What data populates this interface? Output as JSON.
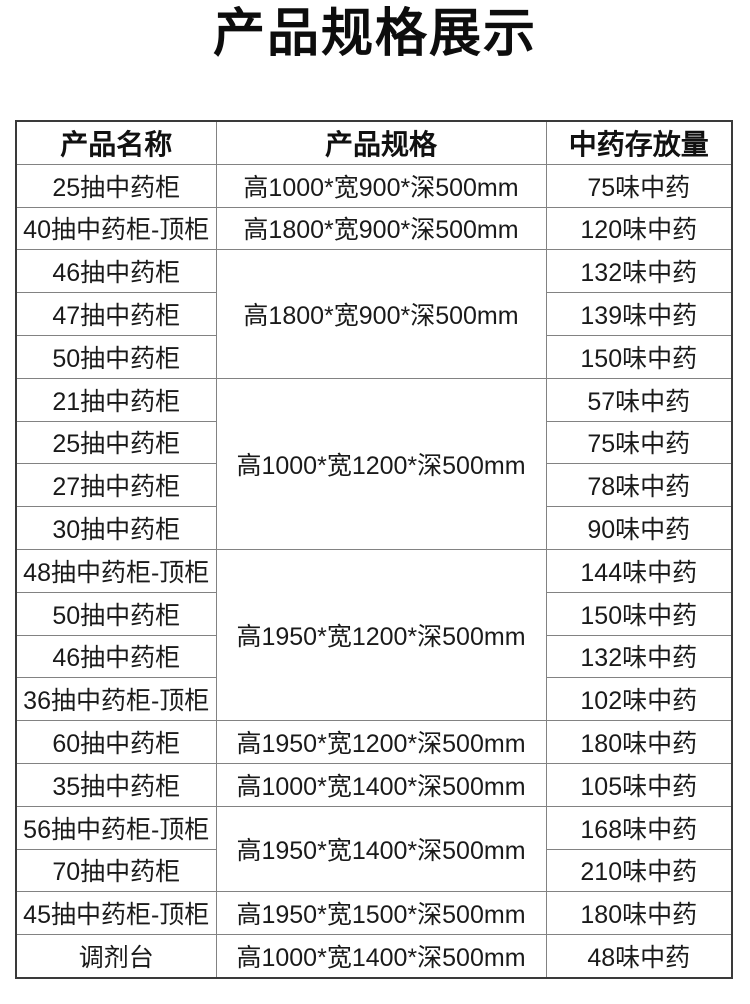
{
  "page": {
    "title": "产品规格展示"
  },
  "colors": {
    "background": "#ffffff",
    "text": "#1a1a1a",
    "border_inner": "#828282",
    "border_outer": "#3a3a3a"
  },
  "table": {
    "headers": [
      "产品名称",
      "产品规格",
      "中药存放量"
    ],
    "rows": [
      {
        "name": "25抽中药柜",
        "spec": "高1000*宽900*深500mm",
        "spec_rowspan": 1,
        "capacity": "75味中药"
      },
      {
        "name": "40抽中药柜-顶柜",
        "spec": "高1800*宽900*深500mm",
        "spec_rowspan": 1,
        "capacity": "120味中药"
      },
      {
        "name": "46抽中药柜",
        "spec": "高1800*宽900*深500mm",
        "spec_rowspan": 3,
        "capacity": "132味中药"
      },
      {
        "name": "47抽中药柜",
        "capacity": "139味中药"
      },
      {
        "name": "50抽中药柜",
        "capacity": "150味中药"
      },
      {
        "name": "21抽中药柜",
        "spec": "高1000*宽1200*深500mm",
        "spec_rowspan": 4,
        "capacity": "57味中药"
      },
      {
        "name": "25抽中药柜",
        "capacity": "75味中药"
      },
      {
        "name": "27抽中药柜",
        "capacity": "78味中药"
      },
      {
        "name": "30抽中药柜",
        "capacity": "90味中药"
      },
      {
        "name": "48抽中药柜-顶柜",
        "spec": "高1950*宽1200*深500mm",
        "spec_rowspan": 4,
        "capacity": "144味中药"
      },
      {
        "name": "50抽中药柜",
        "capacity": "150味中药"
      },
      {
        "name": "46抽中药柜",
        "capacity": "132味中药"
      },
      {
        "name": "36抽中药柜-顶柜",
        "capacity": "102味中药"
      },
      {
        "name": "60抽中药柜",
        "spec": "高1950*宽1200*深500mm",
        "spec_rowspan": 1,
        "capacity": "180味中药"
      },
      {
        "name": "35抽中药柜",
        "spec": "高1000*宽1400*深500mm",
        "spec_rowspan": 1,
        "capacity": "105味中药"
      },
      {
        "name": "56抽中药柜-顶柜",
        "spec": "高1950*宽1400*深500mm",
        "spec_rowspan": 2,
        "capacity": "168味中药"
      },
      {
        "name": "70抽中药柜",
        "capacity": "210味中药"
      },
      {
        "name": "45抽中药柜-顶柜",
        "spec": "高1950*宽1500*深500mm",
        "spec_rowspan": 1,
        "capacity": "180味中药"
      },
      {
        "name": "调剂台",
        "spec": "高1000*宽1400*深500mm",
        "spec_rowspan": 1,
        "capacity": "48味中药"
      }
    ]
  }
}
